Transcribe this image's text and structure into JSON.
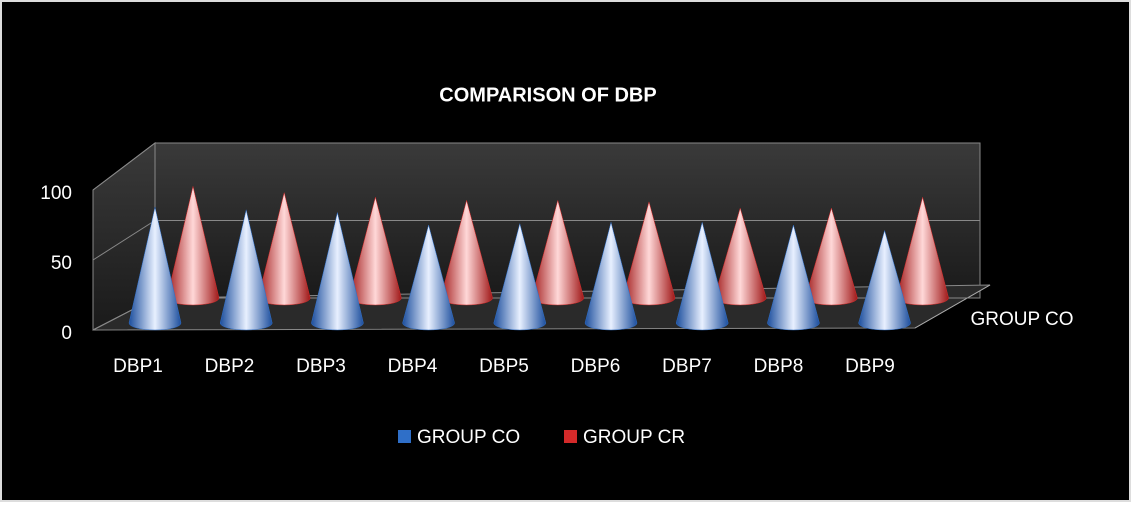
{
  "chart_data": {
    "type": "cone3d",
    "title": "COMPARISON OF DBP",
    "categories": [
      "DBP1",
      "DBP2",
      "DBP3",
      "DBP4",
      "DBP5",
      "DBP6",
      "DBP7",
      "DBP8",
      "DBP9"
    ],
    "series": [
      {
        "name": "GROUP CO",
        "color": "#2f6fc8",
        "values": [
          84,
          82,
          80,
          71,
          72,
          73,
          73,
          71,
          67
        ]
      },
      {
        "name": "GROUP CR",
        "color": "#d42a2a",
        "values": [
          72,
          68,
          65,
          63,
          63,
          62,
          58,
          58,
          65
        ]
      }
    ],
    "depth_label": "GROUP CO",
    "ylim": [
      0,
      100
    ],
    "yticks": [
      0,
      50,
      100
    ],
    "grid": true,
    "legend": "bottom"
  }
}
